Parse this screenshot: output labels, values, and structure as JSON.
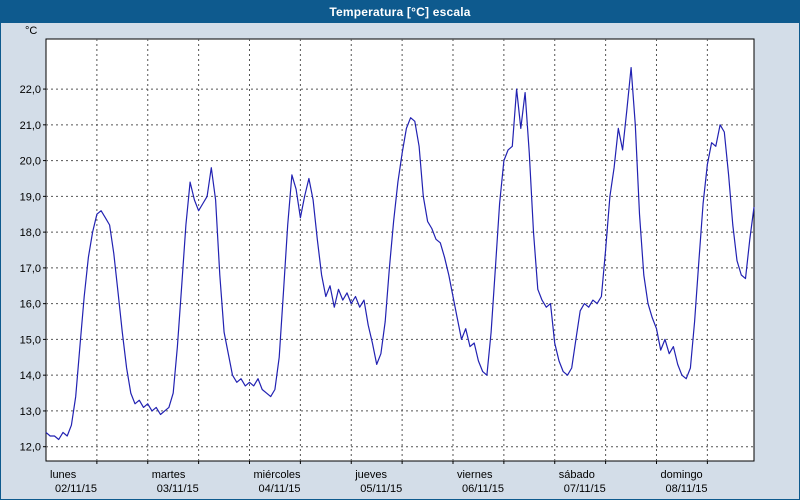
{
  "title": "Temperatura [°C] escala",
  "colors": {
    "titlebar_bg": "#0e5a8e",
    "titlebar_text": "#ffffff",
    "window_bg": "#d3dde8",
    "plot_bg": "#ffffff",
    "grid": "#555555",
    "line": "#2222b2",
    "border": "#000000",
    "label": "#000000"
  },
  "chart_data": {
    "type": "line",
    "title": "Temperatura [°C] escala",
    "ylabel": "°C",
    "xlabel": "",
    "ylim": [
      11.6,
      23.4
    ],
    "x_hours_total": 168,
    "x_grid_every_hours": 12,
    "grid": "dashed",
    "legend_position": "none",
    "y_ticks": [
      {
        "v": 12,
        "label": "12,0"
      },
      {
        "v": 13,
        "label": "13,0"
      },
      {
        "v": 14,
        "label": "14,0"
      },
      {
        "v": 15,
        "label": "15,0"
      },
      {
        "v": 16,
        "label": "16,0"
      },
      {
        "v": 17,
        "label": "17,0"
      },
      {
        "v": 18,
        "label": "18,0"
      },
      {
        "v": 19,
        "label": "19,0"
      },
      {
        "v": 20,
        "label": "20,0"
      },
      {
        "v": 21,
        "label": "21,0"
      },
      {
        "v": 22,
        "label": "22,0"
      }
    ],
    "days": [
      {
        "name": "lunes",
        "date": "02/11/15"
      },
      {
        "name": "martes",
        "date": "03/11/15"
      },
      {
        "name": "miércoles",
        "date": "04/11/15"
      },
      {
        "name": "jueves",
        "date": "05/11/15"
      },
      {
        "name": "viernes",
        "date": "06/11/15"
      },
      {
        "name": "sábado",
        "date": "07/11/15"
      },
      {
        "name": "domingo",
        "date": "08/11/15"
      }
    ],
    "series": [
      {
        "name": "Temperatura",
        "values": [
          12.4,
          12.3,
          12.3,
          12.2,
          12.4,
          12.3,
          12.6,
          13.4,
          14.8,
          16.2,
          17.3,
          18.0,
          18.5,
          18.6,
          18.4,
          18.2,
          17.4,
          16.3,
          15.2,
          14.2,
          13.5,
          13.2,
          13.3,
          13.1,
          13.2,
          13.0,
          13.1,
          12.9,
          13.0,
          13.1,
          13.5,
          14.8,
          16.5,
          18.2,
          19.4,
          18.9,
          18.6,
          18.8,
          19.0,
          19.8,
          18.9,
          16.8,
          15.2,
          14.6,
          14.0,
          13.8,
          13.9,
          13.7,
          13.8,
          13.7,
          13.9,
          13.6,
          13.5,
          13.4,
          13.6,
          14.5,
          16.3,
          18.2,
          19.6,
          19.2,
          18.4,
          19.0,
          19.5,
          18.9,
          17.8,
          16.8,
          16.2,
          16.5,
          15.9,
          16.4,
          16.1,
          16.3,
          16.0,
          16.2,
          15.9,
          16.1,
          15.4,
          14.9,
          14.3,
          14.6,
          15.5,
          17.0,
          18.3,
          19.4,
          20.2,
          20.9,
          21.2,
          21.1,
          20.4,
          19.0,
          18.3,
          18.1,
          17.8,
          17.7,
          17.3,
          16.8,
          16.2,
          15.6,
          15.0,
          15.3,
          14.8,
          14.9,
          14.4,
          14.1,
          14.0,
          15.2,
          17.0,
          18.8,
          20.0,
          20.3,
          20.4,
          22.0,
          20.9,
          21.9,
          20.2,
          18.0,
          16.4,
          16.1,
          15.9,
          16.0,
          14.9,
          14.4,
          14.1,
          14.0,
          14.2,
          15.0,
          15.8,
          16.0,
          15.9,
          16.1,
          16.0,
          16.2,
          17.5,
          19.0,
          19.8,
          20.9,
          20.3,
          21.4,
          22.6,
          21.0,
          18.5,
          16.8,
          16.0,
          15.6,
          15.3,
          14.7,
          15.0,
          14.6,
          14.8,
          14.3,
          14.0,
          13.9,
          14.2,
          15.5,
          17.2,
          18.8,
          19.9,
          20.5,
          20.4,
          21.0,
          20.8,
          19.6,
          18.2,
          17.2,
          16.8,
          16.7,
          17.8,
          18.7
        ]
      }
    ]
  }
}
